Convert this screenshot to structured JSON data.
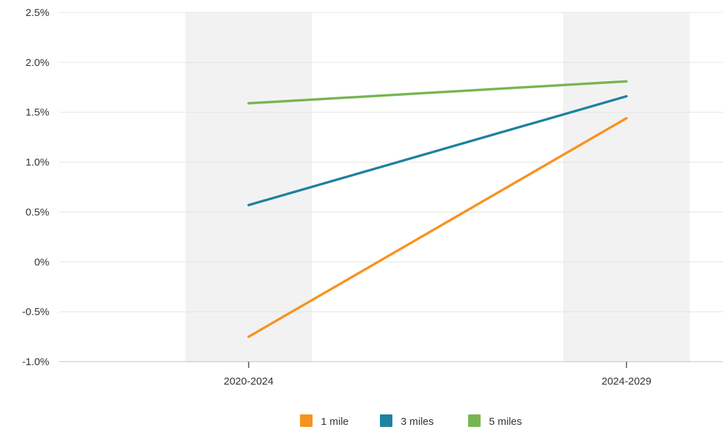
{
  "chart_data": {
    "type": "line",
    "categories": [
      "2020-2024",
      "2024-2029"
    ],
    "y_ticks": [
      "2.5%",
      "2.0%",
      "1.5%",
      "1.0%",
      "0.5%",
      "0%",
      "-0.5%",
      "-1.0%"
    ],
    "ylim": [
      -1.0,
      2.5
    ],
    "grid": true,
    "legend_position": "bottom",
    "series": [
      {
        "name": "1 mile",
        "values": [
          -0.75,
          1.44
        ],
        "color": "#f7931e"
      },
      {
        "name": "3 miles",
        "values": [
          0.57,
          1.66
        ],
        "color": "#1f82a0"
      },
      {
        "name": "5 miles",
        "values": [
          1.59,
          1.81
        ],
        "color": "#77b552"
      }
    ],
    "category_band_color": "#f2f2f2"
  }
}
